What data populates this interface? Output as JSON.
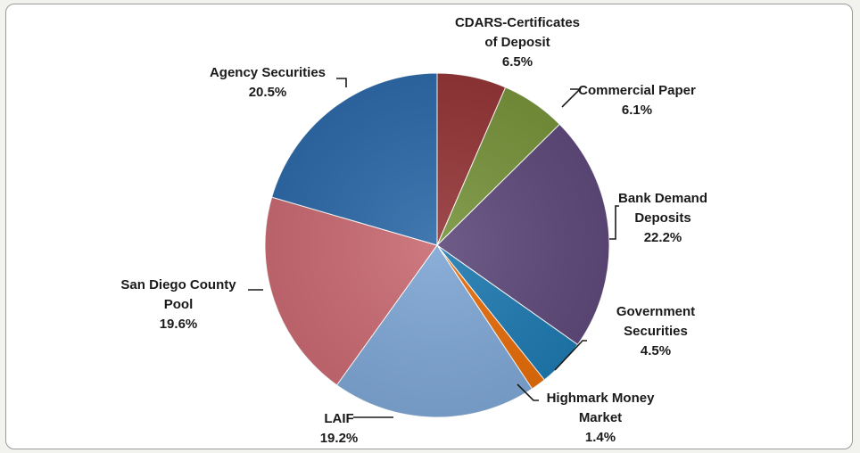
{
  "chart_data": {
    "type": "pie",
    "start_angle_deg": 0,
    "direction": "clockwise",
    "slices": [
      {
        "name": "CDARS-Certificates of Deposit",
        "value": 6.5,
        "value_label": "6.5%",
        "label_lines": [
          "CDARS-Certificates",
          "of Deposit"
        ],
        "color": "#943638"
      },
      {
        "name": "Commercial Paper",
        "value": 6.1,
        "value_label": "6.1%",
        "label_lines": [
          "Commercial Paper"
        ],
        "color": "#77933c"
      },
      {
        "name": "Bank Demand Deposits",
        "value": 22.2,
        "value_label": "22.2%",
        "label_lines": [
          "Bank Demand",
          "Deposits"
        ],
        "color": "#5f4a7b"
      },
      {
        "name": "Government Securities",
        "value": 4.5,
        "value_label": "4.5%",
        "label_lines": [
          "Government",
          "Securities"
        ],
        "color": "#1f7ab0"
      },
      {
        "name": "Highmark Money Market",
        "value": 1.4,
        "value_label": "1.4%",
        "label_lines": [
          "Highmark Money",
          "Market"
        ],
        "color": "#e46c0a"
      },
      {
        "name": "LAIF",
        "value": 19.2,
        "value_label": "19.2%",
        "label_lines": [
          "LAIF"
        ],
        "color": "#7ea6d4"
      },
      {
        "name": "San Diego County Pool",
        "value": 19.6,
        "value_label": "19.6%",
        "label_lines": [
          "San Diego County",
          "Pool"
        ],
        "color": "#c96a72"
      },
      {
        "name": "Agency Securities",
        "value": 20.5,
        "value_label": "20.5%",
        "label_lines": [
          "Agency Securities"
        ],
        "color": "#2e6aa8"
      }
    ]
  }
}
